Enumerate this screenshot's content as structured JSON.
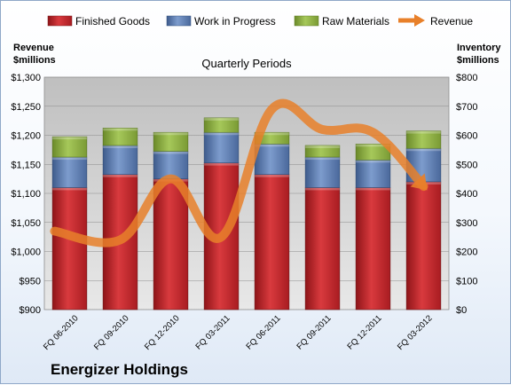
{
  "company": "Energizer Holdings",
  "chart_data": {
    "type": "bar",
    "stacked": true,
    "title": "Quarterly Periods",
    "categories": [
      "FQ 06-2010",
      "FQ 09-2010",
      "FQ 12-2010",
      "FQ 03-2011",
      "FQ 06-2011",
      "FQ 09-2011",
      "FQ 12-2011",
      "FQ 03-2012"
    ],
    "series": [
      {
        "name": "Finished Goods",
        "axis": "right",
        "color": "#c0282d",
        "values": [
          420,
          465,
          450,
          505,
          465,
          420,
          420,
          440
        ]
      },
      {
        "name": "Work in Progress",
        "axis": "right",
        "color": "#4f6fa8",
        "values": [
          105,
          100,
          95,
          105,
          105,
          105,
          95,
          115
        ]
      },
      {
        "name": "Raw Materials",
        "axis": "right",
        "color": "#8aae3f",
        "values": [
          70,
          60,
          65,
          50,
          40,
          40,
          55,
          60
        ]
      }
    ],
    "line_series": {
      "name": "Revenue",
      "axis": "left",
      "color": "#e8802a",
      "style": "arrow",
      "values": [
        1035,
        1020,
        1125,
        1025,
        1245,
        1210,
        1205,
        1112
      ]
    },
    "left_axis": {
      "label_line1": "Revenue",
      "label_line2": "$millions",
      "range": [
        900,
        1300
      ],
      "ticks": [
        "$900",
        "$950",
        "$1,000",
        "$1,050",
        "$1,100",
        "$1,150",
        "$1,200",
        "$1,250",
        "$1,300"
      ]
    },
    "right_axis": {
      "label_line1": "Inventory",
      "label_line2": "$millions",
      "range": [
        0,
        800
      ],
      "ticks": [
        "$0",
        "$100",
        "$200",
        "$300",
        "$400",
        "$500",
        "$600",
        "$700",
        "$800"
      ]
    },
    "grid": true,
    "legend_position": "top"
  }
}
